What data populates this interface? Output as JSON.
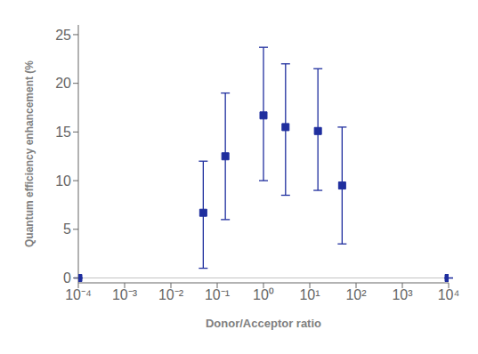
{
  "chart_data": {
    "type": "scatter",
    "x": [
      0.0001,
      0.05,
      0.15,
      1.0,
      3.0,
      15.0,
      50.0,
      10000
    ],
    "values": [
      0.0,
      6.7,
      12.5,
      16.7,
      15.5,
      15.1,
      9.5,
      0.0
    ],
    "yerr_lower": [
      0.0,
      5.7,
      6.5,
      6.7,
      7.0,
      6.1,
      6.0,
      0.0
    ],
    "yerr_upper": [
      0.0,
      5.3,
      6.5,
      7.0,
      6.5,
      6.4,
      6.0,
      0.0
    ],
    "color": "#1F2E9E",
    "marker": "square",
    "xlabel": "Donor/Acceptor ratio",
    "ylabel": "Quantum efficiency enhancement (%",
    "log": "x",
    "xlim": [
      0.0001,
      10000
    ],
    "xticks": [
      {
        "value": 0.0001,
        "label": "10⁻⁴"
      },
      {
        "value": 0.001,
        "label": "10⁻³"
      },
      {
        "value": 0.01,
        "label": "10⁻²"
      },
      {
        "value": 0.1,
        "label": "10⁻¹"
      },
      {
        "value": 1,
        "label": "10⁰"
      },
      {
        "value": 10,
        "label": "10¹"
      },
      {
        "value": 100,
        "label": "10²"
      },
      {
        "value": 1000,
        "label": "10³"
      },
      {
        "value": 10000,
        "label": "10⁴"
      }
    ],
    "ylim": [
      -0.5,
      26
    ],
    "yticks": [
      0,
      5,
      10,
      15,
      20,
      25
    ],
    "hline": {
      "y": 0,
      "color": "#888888"
    },
    "grid": false
  }
}
